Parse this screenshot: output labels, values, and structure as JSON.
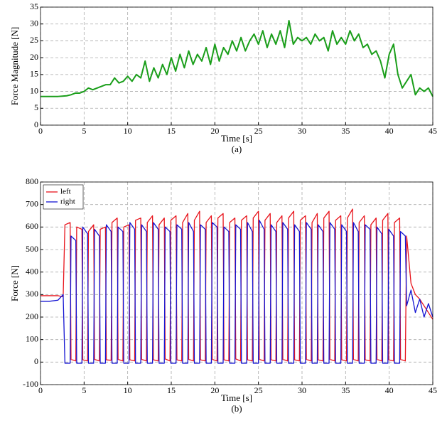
{
  "chart_data": [
    {
      "type": "line",
      "xlabel": "Time [s]",
      "ylabel": "Force Magnitude [N]",
      "caption": "(a)",
      "xlim": [
        0,
        45
      ],
      "ylim": [
        0,
        35
      ],
      "xticks": [
        0,
        5,
        10,
        15,
        20,
        25,
        30,
        35,
        40,
        45
      ],
      "yticks": [
        0,
        5,
        10,
        15,
        20,
        25,
        30,
        35
      ],
      "grid": true,
      "color": "#1a9e1a",
      "x": [
        0,
        0.5,
        1,
        1.5,
        2,
        2.5,
        3,
        3.5,
        4,
        4.5,
        5,
        5.5,
        6,
        6.5,
        7,
        7.5,
        8,
        8.5,
        9,
        9.5,
        10,
        10.5,
        11,
        11.5,
        12,
        12.5,
        13,
        13.5,
        14,
        14.5,
        15,
        15.5,
        16,
        16.5,
        17,
        17.5,
        18,
        18.5,
        19,
        19.5,
        20,
        20.5,
        21,
        21.5,
        22,
        22.5,
        23,
        23.5,
        24,
        24.5,
        25,
        25.5,
        26,
        26.5,
        27,
        27.5,
        28,
        28.5,
        29,
        29.5,
        30,
        30.5,
        31,
        31.5,
        32,
        32.5,
        33,
        33.5,
        34,
        34.5,
        35,
        35.5,
        36,
        36.5,
        37,
        37.5,
        38,
        38.5,
        39,
        39.5,
        40,
        40.5,
        41,
        41.5,
        42,
        42.5,
        43,
        43.5,
        44,
        44.5,
        45
      ],
      "values": [
        8.5,
        8.5,
        8.5,
        8.5,
        8.5,
        8.6,
        8.7,
        9,
        9.5,
        9.5,
        10,
        11,
        10.5,
        11,
        11.5,
        12,
        12,
        14,
        12.5,
        13,
        14.5,
        13,
        15,
        14,
        19,
        13,
        17,
        14,
        18,
        15,
        20,
        16,
        21,
        17,
        22,
        18,
        21,
        19,
        23,
        18,
        24,
        19,
        23,
        21,
        25,
        22,
        26,
        22,
        25,
        27,
        24,
        28,
        23,
        27,
        24,
        28,
        23,
        31,
        24,
        26,
        25,
        26,
        24,
        27,
        25,
        26,
        22,
        28,
        24,
        26,
        24,
        28,
        25,
        27,
        23,
        24,
        21,
        22,
        19,
        14,
        21,
        24,
        15,
        11,
        13,
        15,
        9,
        11,
        10,
        11,
        8.5
      ]
    },
    {
      "type": "line",
      "xlabel": "Time [s]",
      "ylabel": "Force [N]",
      "caption": "(b)",
      "xlim": [
        0,
        45
      ],
      "ylim": [
        -100,
        800
      ],
      "xticks": [
        0,
        5,
        10,
        15,
        20,
        25,
        30,
        35,
        40,
        45
      ],
      "yticks": [
        -100,
        0,
        100,
        200,
        300,
        400,
        500,
        600,
        700,
        800
      ],
      "grid": true,
      "legend": "upper left",
      "x": [
        0,
        1,
        2,
        2.6,
        2.8,
        3.4,
        3.5,
        4.05,
        4.15,
        4.75,
        4.85,
        5.4,
        5.5,
        6.1,
        6.2,
        6.75,
        6.85,
        7.45,
        7.55,
        8.1,
        8.2,
        8.8,
        8.9,
        9.45,
        9.55,
        10.15,
        10.25,
        10.8,
        10.9,
        11.5,
        11.6,
        12.15,
        12.25,
        12.85,
        12.95,
        13.5,
        13.6,
        14.2,
        14.3,
        14.85,
        14.95,
        15.55,
        15.65,
        16.2,
        16.3,
        16.9,
        17,
        17.55,
        17.65,
        18.25,
        18.35,
        18.9,
        19,
        19.6,
        19.7,
        20.25,
        20.35,
        20.95,
        21.05,
        21.6,
        21.7,
        22.3,
        22.4,
        22.95,
        23.05,
        23.65,
        23.75,
        24.3,
        24.4,
        25,
        25.1,
        25.65,
        25.75,
        26.35,
        26.45,
        27,
        27.1,
        27.7,
        27.8,
        28.35,
        28.45,
        29.05,
        29.15,
        29.7,
        29.8,
        30.4,
        30.5,
        31.05,
        31.15,
        31.75,
        31.85,
        32.4,
        32.5,
        33.1,
        33.2,
        33.75,
        33.85,
        34.45,
        34.55,
        35.1,
        35.2,
        35.8,
        35.9,
        36.45,
        36.55,
        37.15,
        37.25,
        37.8,
        37.9,
        38.5,
        38.6,
        39.15,
        39.25,
        39.85,
        39.95,
        40.5,
        40.6,
        41.2,
        41.3,
        41.85,
        42,
        42.5,
        43,
        43.5,
        44,
        44.5,
        45
      ],
      "series": [
        {
          "name": "left",
          "color": "#e8141c",
          "values": [
            295,
            295,
            295,
            290,
            610,
            620,
            12,
            5,
            600,
            590,
            10,
            5,
            580,
            610,
            12,
            5,
            590,
            600,
            10,
            8,
            620,
            640,
            12,
            5,
            600,
            610,
            10,
            5,
            630,
            640,
            12,
            5,
            620,
            650,
            10,
            5,
            610,
            640,
            14,
            5,
            630,
            650,
            10,
            5,
            620,
            660,
            12,
            5,
            630,
            670,
            10,
            5,
            620,
            650,
            12,
            5,
            640,
            660,
            10,
            5,
            620,
            640,
            14,
            5,
            630,
            650,
            10,
            5,
            640,
            670,
            12,
            5,
            630,
            660,
            10,
            5,
            620,
            650,
            12,
            5,
            640,
            670,
            10,
            5,
            630,
            650,
            12,
            5,
            620,
            660,
            10,
            5,
            640,
            670,
            12,
            5,
            630,
            650,
            10,
            5,
            640,
            680,
            12,
            5,
            620,
            650,
            10,
            5,
            610,
            640,
            12,
            5,
            630,
            660,
            10,
            5,
            620,
            640,
            12,
            5,
            560,
            350,
            300,
            280,
            250,
            220,
            190
          ]
        },
        {
          "name": "right",
          "color": "#1414d2",
          "values": [
            270,
            270,
            275,
            300,
            -5,
            -5,
            560,
            540,
            -5,
            -5,
            600,
            570,
            -5,
            -5,
            590,
            560,
            -5,
            -5,
            610,
            580,
            -5,
            -5,
            600,
            580,
            -5,
            -5,
            620,
            590,
            -5,
            -5,
            610,
            580,
            -5,
            -5,
            620,
            590,
            -5,
            -5,
            600,
            580,
            -5,
            -5,
            610,
            590,
            -5,
            -5,
            620,
            580,
            -5,
            -5,
            610,
            590,
            -5,
            -5,
            620,
            600,
            -5,
            -5,
            600,
            580,
            -5,
            -5,
            610,
            590,
            -5,
            -5,
            620,
            580,
            -5,
            -5,
            630,
            590,
            -5,
            -5,
            610,
            580,
            -5,
            -5,
            620,
            590,
            -5,
            -5,
            610,
            580,
            -5,
            -5,
            620,
            590,
            -5,
            -5,
            610,
            580,
            -5,
            -5,
            620,
            590,
            -5,
            -5,
            610,
            580,
            -5,
            -5,
            620,
            580,
            -5,
            -5,
            610,
            590,
            -5,
            -5,
            600,
            570,
            -5,
            -5,
            590,
            560,
            -5,
            -5,
            580,
            560,
            250,
            320,
            220,
            280,
            200,
            260,
            200
          ]
        }
      ]
    }
  ]
}
